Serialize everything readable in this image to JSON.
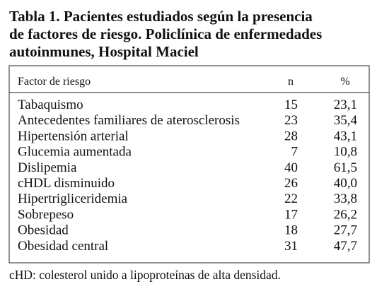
{
  "title": [
    "Tabla 1. Pacientes estudiados según la presencia",
    "de factores de riesgo. Policlínica de enfermedades",
    "autoinmunes, Hospital Maciel"
  ],
  "table": {
    "header": [
      "Factor de riesgo",
      "n",
      "%"
    ],
    "rows": [
      [
        "Tabaquismo",
        "15",
        "23,1"
      ],
      [
        "Antecedentes familiares de aterosclerosis",
        "23",
        "35,4"
      ],
      [
        "Hipertensión arterial",
        "28",
        "43,1"
      ],
      [
        "Glucemia aumentada",
        "7",
        "10,8"
      ],
      [
        "Dislipemia",
        "40",
        "61,5"
      ],
      [
        "cHDL disminuido",
        "26",
        "40,0"
      ],
      [
        "Hipertrigliceridemia",
        "22",
        "33,8"
      ],
      [
        "Sobrepeso",
        "17",
        "26,2"
      ],
      [
        "Obesidad",
        "18",
        "27,7"
      ],
      [
        "Obesidad central",
        "31",
        "47,7"
      ]
    ]
  },
  "footnote": "cHD: colesterol unido a lipoproteínas de alta densidad."
}
